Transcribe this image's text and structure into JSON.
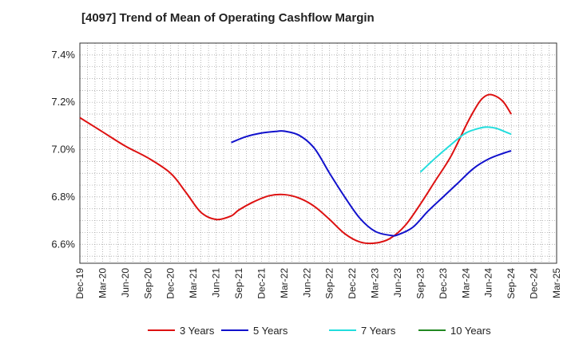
{
  "chart_data": {
    "type": "line",
    "title": "[4097]  Trend of Mean of Operating Cashflow Margin",
    "xlabel": "",
    "ylabel": "",
    "ylim": [
      6.52,
      7.45
    ],
    "yticks": [
      6.6,
      6.8,
      7.0,
      7.2,
      7.4
    ],
    "ytick_labels": [
      "6.6%",
      "6.8%",
      "7.0%",
      "7.2%",
      "7.4%"
    ],
    "x_start": "2019-12",
    "x_end": "2025-03",
    "xtick_labels": [
      "Dec-19",
      "Mar-20",
      "Jun-20",
      "Sep-20",
      "Dec-20",
      "Mar-21",
      "Jun-21",
      "Sep-21",
      "Dec-21",
      "Mar-22",
      "Jun-22",
      "Sep-22",
      "Dec-22",
      "Mar-23",
      "Jun-23",
      "Sep-23",
      "Dec-23",
      "Mar-24",
      "Jun-24",
      "Sep-24",
      "Dec-24",
      "Mar-25"
    ],
    "grid": true,
    "legend_position": "bottom",
    "series": [
      {
        "name": "3 Years",
        "color": "#dd1111",
        "x": [
          "2019-12",
          "2020-03",
          "2020-06",
          "2020-09",
          "2020-12",
          "2021-02",
          "2021-04",
          "2021-06",
          "2021-08",
          "2021-09",
          "2021-11",
          "2022-01",
          "2022-03",
          "2022-05",
          "2022-07",
          "2022-09",
          "2022-11",
          "2023-01",
          "2023-03",
          "2023-05",
          "2023-07",
          "2023-09",
          "2023-11",
          "2024-01",
          "2024-03",
          "2024-04",
          "2024-05",
          "2024-06",
          "2024-07",
          "2024-08",
          "2024-09"
        ],
        "values": [
          7.135,
          7.075,
          7.015,
          6.965,
          6.9,
          6.82,
          6.735,
          6.705,
          6.72,
          6.745,
          6.78,
          6.805,
          6.81,
          6.795,
          6.76,
          6.705,
          6.645,
          6.61,
          6.605,
          6.625,
          6.68,
          6.77,
          6.87,
          6.97,
          7.1,
          7.16,
          7.21,
          7.232,
          7.225,
          7.2,
          7.15
        ]
      },
      {
        "name": "5 Years",
        "color": "#1111cc",
        "x": [
          "2021-08",
          "2021-10",
          "2021-12",
          "2022-02",
          "2022-03",
          "2022-05",
          "2022-07",
          "2022-09",
          "2022-11",
          "2023-01",
          "2023-03",
          "2023-05",
          "2023-06",
          "2023-08",
          "2023-10",
          "2023-12",
          "2024-02",
          "2024-04",
          "2024-06",
          "2024-08",
          "2024-09"
        ],
        "values": [
          7.03,
          7.055,
          7.07,
          7.077,
          7.078,
          7.06,
          7.005,
          6.9,
          6.8,
          6.71,
          6.655,
          6.638,
          6.64,
          6.672,
          6.74,
          6.8,
          6.86,
          6.92,
          6.96,
          6.985,
          6.995
        ]
      },
      {
        "name": "7 Years",
        "color": "#22dddd",
        "x": [
          "2023-09",
          "2023-11",
          "2024-01",
          "2024-03",
          "2024-05",
          "2024-06",
          "2024-07",
          "2024-08",
          "2024-09"
        ],
        "values": [
          6.905,
          6.965,
          7.02,
          7.07,
          7.092,
          7.095,
          7.09,
          7.078,
          7.065
        ]
      },
      {
        "name": "10 Years",
        "color": "#228822",
        "x": [],
        "values": []
      }
    ]
  }
}
